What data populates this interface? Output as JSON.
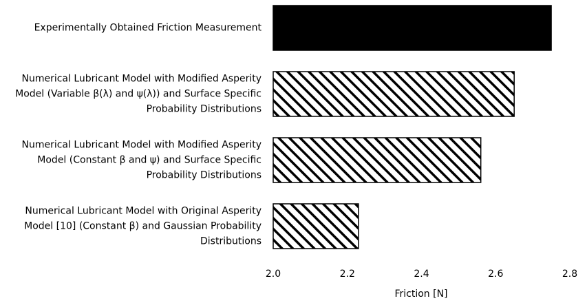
{
  "chart_data": {
    "type": "barh",
    "categories": [
      "Experimentally Obtained Friction Measurement",
      "Numerical Lubricant Model with Modified Asperity\nModel (Variable β(λ) and ψ(λ)) and Surface Specific\nProbability Distributions",
      "Numerical Lubricant Model with Modified Asperity\nModel (Constant β and ψ) and Surface Specific\nProbability Distributions",
      "Numerical Lubricant Model with Original Asperity\nModel [10] (Constant β) and Gaussian Probability\nDistributions"
    ],
    "values": [
      2.75,
      2.65,
      2.56,
      2.23
    ],
    "bar_styles": [
      "solid",
      "hatched",
      "hatched",
      "hatched"
    ],
    "color": "#000000",
    "xlabel": "Friction [N]",
    "xlim": [
      2.0,
      2.8
    ],
    "xticks": [
      {
        "value": 2.0,
        "label": "2.0"
      },
      2.2,
      2.4,
      2.6,
      {
        "value": 2.8,
        "label": "2.8"
      }
    ],
    "grid": false
  }
}
